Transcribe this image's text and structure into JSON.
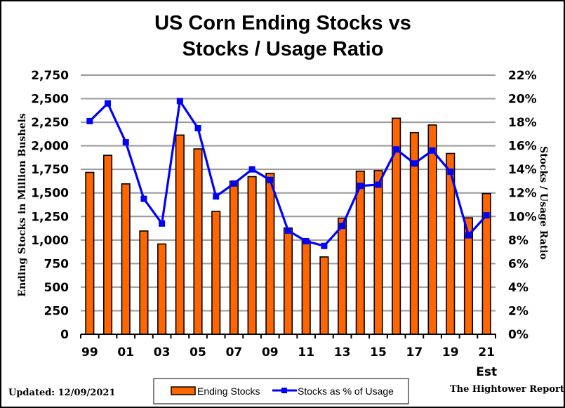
{
  "chart_data": {
    "type": "bar",
    "title_lines": [
      "US Corn Ending Stocks vs",
      "Stocks / Usage Ratio"
    ],
    "categories": [
      "99",
      "00",
      "01",
      "02",
      "03",
      "04",
      "05",
      "06",
      "07",
      "08",
      "09",
      "10",
      "11",
      "12",
      "13",
      "14",
      "15",
      "16",
      "17",
      "18",
      "19",
      "20",
      "21"
    ],
    "x_tick_labels": [
      "99",
      "01",
      "03",
      "05",
      "07",
      "09",
      "11",
      "13",
      "15",
      "17",
      "19",
      "21"
    ],
    "x_sublabel": {
      "category": "21",
      "text": "Est"
    },
    "series": [
      {
        "name": "Ending Stocks",
        "type": "bar",
        "axis": "left",
        "color": "#ff6600",
        "values": [
          1718,
          1899,
          1596,
          1096,
          958,
          2114,
          1967,
          1304,
          1624,
          1673,
          1708,
          1128,
          989,
          821,
          1232,
          1731,
          1737,
          2293,
          2140,
          2221,
          1919,
          1235,
          1493
        ]
      },
      {
        "name": "Stocks as % of Usage",
        "type": "line",
        "axis": "right",
        "color": "#0000ff",
        "values": [
          18.1,
          19.6,
          16.3,
          11.5,
          9.4,
          19.8,
          17.5,
          11.7,
          12.8,
          14.0,
          13.1,
          8.8,
          7.9,
          7.5,
          9.2,
          12.6,
          12.7,
          15.7,
          14.5,
          15.6,
          13.8,
          8.4,
          10.1
        ]
      }
    ],
    "y_left": {
      "label": "Ending Stocks in Million Bushels",
      "range": [
        0,
        2750
      ],
      "ticks": [
        0,
        250,
        500,
        750,
        1000,
        1250,
        1500,
        1750,
        2000,
        2250,
        2500,
        2750
      ],
      "tick_labels": [
        "0",
        "250",
        "500",
        "750",
        "1,000",
        "1,250",
        "1,500",
        "1,750",
        "2,000",
        "2,250",
        "2,500",
        "2,750"
      ]
    },
    "y_right": {
      "label": "Stocks / Usage Ratio",
      "range": [
        0,
        22
      ],
      "ticks": [
        0,
        2,
        4,
        6,
        8,
        10,
        12,
        14,
        16,
        18,
        20,
        22
      ],
      "tick_labels": [
        "0%",
        "2%",
        "4%",
        "6%",
        "8%",
        "10%",
        "12%",
        "14%",
        "16%",
        "18%",
        "20%",
        "22%"
      ]
    },
    "grid": true,
    "legend": {
      "position": "bottom-center",
      "entries": [
        "Ending Stocks",
        "Stocks as % of Usage"
      ]
    },
    "annotations": {
      "updated": "Updated: 12/09/2021",
      "source": "The Hightower Report"
    }
  }
}
